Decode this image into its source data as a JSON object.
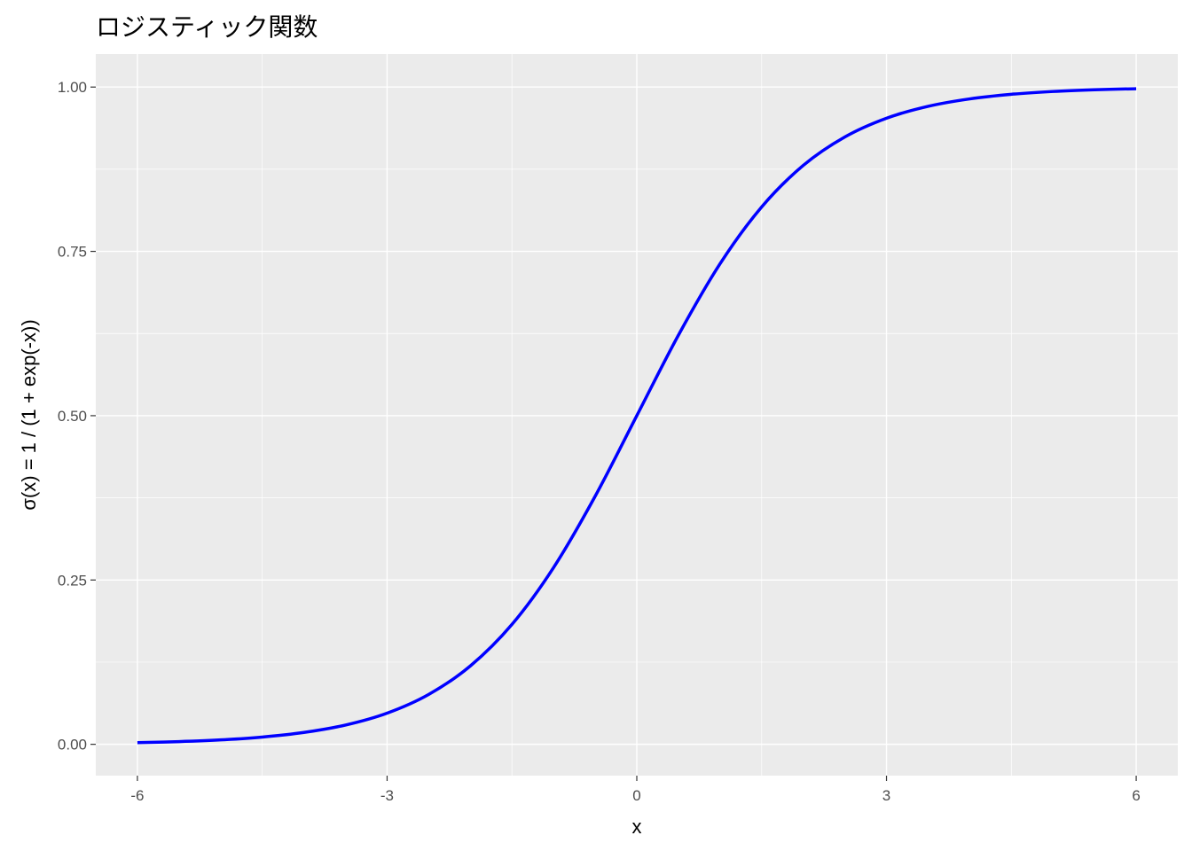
{
  "chart_data": {
    "type": "line",
    "title": "ロジスティック関数",
    "xlabel": "x",
    "ylabel": "σ(x) = 1 / (1 + exp(-x))",
    "xlim": [
      -6.5,
      6.5
    ],
    "ylim": [
      -0.0477,
      1.0502
    ],
    "x_ticks": [
      -6,
      -3,
      0,
      3,
      6
    ],
    "x_tick_labels": [
      "-6",
      "-3",
      "0",
      "3",
      "6"
    ],
    "y_ticks": [
      0,
      0.25,
      0.5,
      0.75,
      1
    ],
    "y_tick_labels": [
      "0.00",
      "0.25",
      "0.50",
      "0.75",
      "1.00"
    ],
    "grid": true,
    "legend": "none",
    "series": [
      {
        "color": "#0000ff",
        "x": [
          -6,
          -5.5,
          -5,
          -4.5,
          -4,
          -3.5,
          -3,
          -2.5,
          -2,
          -1.5,
          -1,
          -0.5,
          0,
          0.5,
          1,
          1.5,
          2,
          2.5,
          3,
          3.5,
          4,
          4.5,
          5,
          5.5,
          6
        ],
        "y": [
          0.0025,
          0.0041,
          0.0067,
          0.011,
          0.018,
          0.0293,
          0.0474,
          0.0759,
          0.1192,
          0.1824,
          0.2689,
          0.3775,
          0.5,
          0.6225,
          0.7311,
          0.8176,
          0.8808,
          0.9241,
          0.9526,
          0.9707,
          0.982,
          0.989,
          0.9933,
          0.9959,
          0.9975
        ]
      }
    ]
  },
  "colors": {
    "panel_background": "#ebebeb",
    "grid": "#ffffff",
    "line": "#0000ff"
  }
}
